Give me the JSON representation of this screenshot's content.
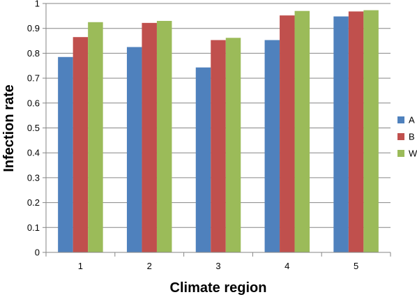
{
  "chart_data": {
    "type": "bar",
    "title": "",
    "xlabel": "Climate region",
    "ylabel": "Infection rate",
    "categories": [
      "1",
      "2",
      "3",
      "4",
      "5"
    ],
    "ylim": [
      0,
      1
    ],
    "yticks": [
      "0",
      "0.1",
      "0.2",
      "0.3",
      "0.4",
      "0.5",
      "0.6",
      "0.7",
      "0.8",
      "0.9",
      "1"
    ],
    "grid": true,
    "legend_position": "right",
    "series": [
      {
        "name": "A",
        "color": "#4F81BD",
        "values": [
          0.785,
          0.825,
          0.743,
          0.853,
          0.948
        ]
      },
      {
        "name": "B",
        "color": "#C0504D",
        "values": [
          0.865,
          0.922,
          0.853,
          0.952,
          0.968
        ]
      },
      {
        "name": "W",
        "color": "#9BBB59",
        "values": [
          0.925,
          0.93,
          0.862,
          0.97,
          0.973
        ]
      }
    ]
  }
}
